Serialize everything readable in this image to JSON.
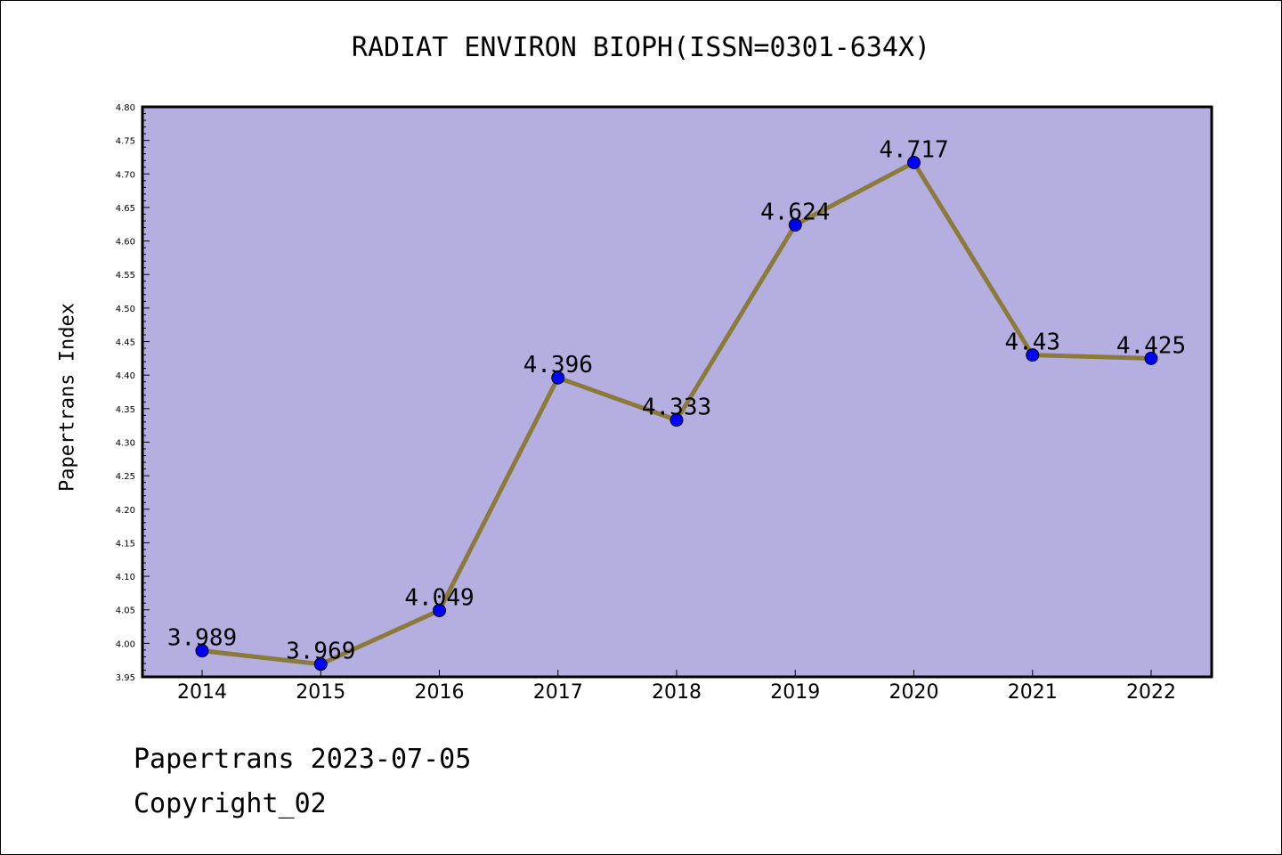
{
  "chart_data": {
    "type": "line",
    "title": "RADIAT ENVIRON BIOPH(ISSN=0301-634X)",
    "xlabel": "",
    "ylabel": "Papertrans Index",
    "categories": [
      "2014",
      "2015",
      "2016",
      "2017",
      "2018",
      "2019",
      "2020",
      "2021",
      "2022"
    ],
    "series": [
      {
        "values": [
          3.989,
          3.969,
          4.049,
          4.396,
          4.333,
          4.624,
          4.717,
          4.43,
          4.425
        ],
        "labels": [
          "3.989",
          "3.969",
          "4.049",
          "4.396",
          "4.333",
          "4.624",
          "4.717",
          "4.43",
          "4.425"
        ]
      }
    ],
    "ylim": [
      3.95,
      4.8
    ],
    "y_ticks": [
      "3.95",
      "4.00",
      "4.05",
      "4.10",
      "4.15",
      "4.20",
      "4.25",
      "4.30",
      "4.35",
      "4.40",
      "4.45",
      "4.50",
      "4.55",
      "4.60",
      "4.65",
      "4.70",
      "4.75",
      "4.80"
    ],
    "grid": false,
    "colors": {
      "plot_background": "#b5aee1",
      "line": "#8b7a3a",
      "marker": "#0000ff"
    }
  },
  "footer": {
    "date_text": "Papertrans 2023-07-05",
    "copyright_text": "Copyright_02"
  }
}
